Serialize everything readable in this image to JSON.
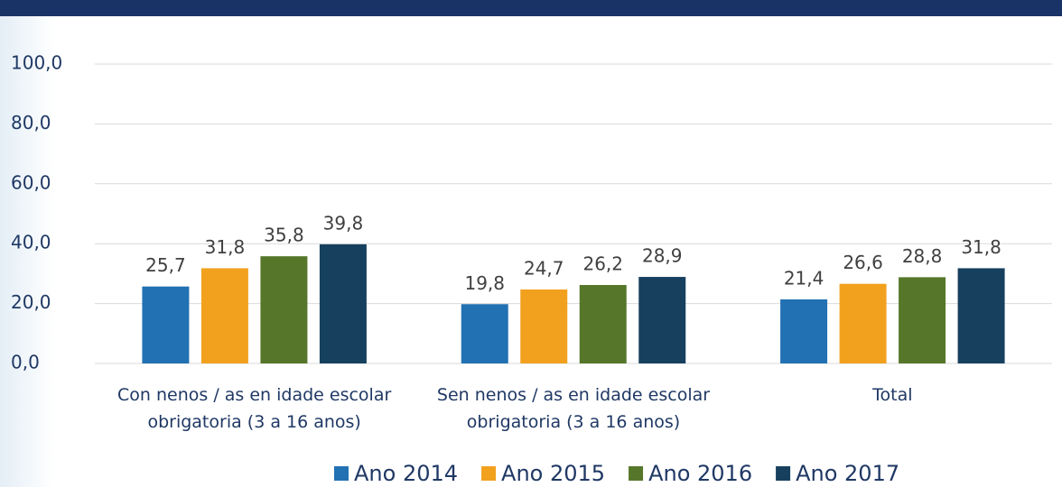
{
  "chart_data": {
    "type": "bar",
    "categories": [
      "Con nenos / as en idade escolar obrigatoria (3 a 16 anos)",
      "Sen nenos / as en idade escolar obrigatoria (3 a 16 anos)",
      "Total"
    ],
    "series": [
      {
        "name": "Ano 2014",
        "color": "#2271b3",
        "values": [
          25.7,
          19.8,
          21.4
        ],
        "value_labels": [
          "25,7",
          "19,8",
          "21,4"
        ]
      },
      {
        "name": "Ano 2015",
        "color": "#f2a11f",
        "values": [
          31.8,
          24.7,
          26.6
        ],
        "value_labels": [
          "31,8",
          "24,7",
          "26,6"
        ]
      },
      {
        "name": "Ano 2016",
        "color": "#56772a",
        "values": [
          35.8,
          26.2,
          28.8
        ],
        "value_labels": [
          "35,8",
          "26,2",
          "28,8"
        ]
      },
      {
        "name": "Ano 2017",
        "color": "#17405f",
        "values": [
          39.8,
          28.9,
          31.8
        ],
        "value_labels": [
          "39,8",
          "28,9",
          "31,8"
        ]
      }
    ],
    "ylim": [
      0,
      100
    ],
    "yticks": [
      {
        "value": 0,
        "label": "0,0"
      },
      {
        "value": 20,
        "label": "20,0"
      },
      {
        "value": 40,
        "label": "40,0"
      },
      {
        "value": 60,
        "label": "60,0"
      },
      {
        "value": 80,
        "label": "80,0"
      },
      {
        "value": 100,
        "label": "100,0"
      }
    ],
    "grid": true,
    "legend": "bottom"
  }
}
